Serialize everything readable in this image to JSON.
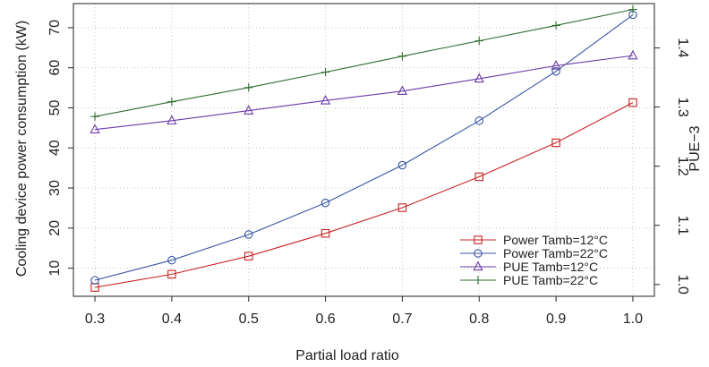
{
  "chart_data": {
    "type": "line",
    "xlabel": "Partial load ratio",
    "ylabel_left": "Cooling device power consumption (kW)",
    "ylabel_right": "PUE−3",
    "x": [
      0.3,
      0.4,
      0.5,
      0.6,
      0.7,
      0.8,
      0.9,
      1.0
    ],
    "xticks": [
      "0.3",
      "0.4",
      "0.5",
      "0.6",
      "0.7",
      "0.8",
      "0.9",
      "1.0"
    ],
    "ylim_left": [
      3,
      76
    ],
    "yticks_left": [
      10,
      20,
      30,
      40,
      50,
      60,
      70
    ],
    "ylim_right": [
      0.98,
      1.475
    ],
    "yticks_right": [
      "1.0",
      "1.1",
      "1.2",
      "1.3",
      "1.4"
    ],
    "grid": true,
    "legend_position": "bottom-right",
    "series": [
      {
        "name": "Power Tamb=12°C",
        "axis": "left",
        "color": "#cc2222",
        "marker": "square",
        "values": [
          5.2,
          8.5,
          13.0,
          18.7,
          25.1,
          32.8,
          41.3,
          51.3
        ]
      },
      {
        "name": "Power Tamb=22°C",
        "axis": "left",
        "color": "#3a55a4",
        "marker": "circle",
        "values": [
          7.0,
          12.0,
          18.4,
          26.3,
          35.7,
          46.8,
          59.1,
          73.2
        ]
      },
      {
        "name": "PUE Tamb=12°C",
        "axis": "right",
        "color": "#6a3aa8",
        "marker": "triangle",
        "values": [
          1.262,
          1.277,
          1.294,
          1.311,
          1.327,
          1.348,
          1.37,
          1.387
        ]
      },
      {
        "name": "PUE Tamb=22°C",
        "axis": "right",
        "color": "#2e6b2e",
        "marker": "plus",
        "values": [
          1.284,
          1.309,
          1.333,
          1.359,
          1.386,
          1.412,
          1.438,
          1.465
        ]
      }
    ]
  }
}
